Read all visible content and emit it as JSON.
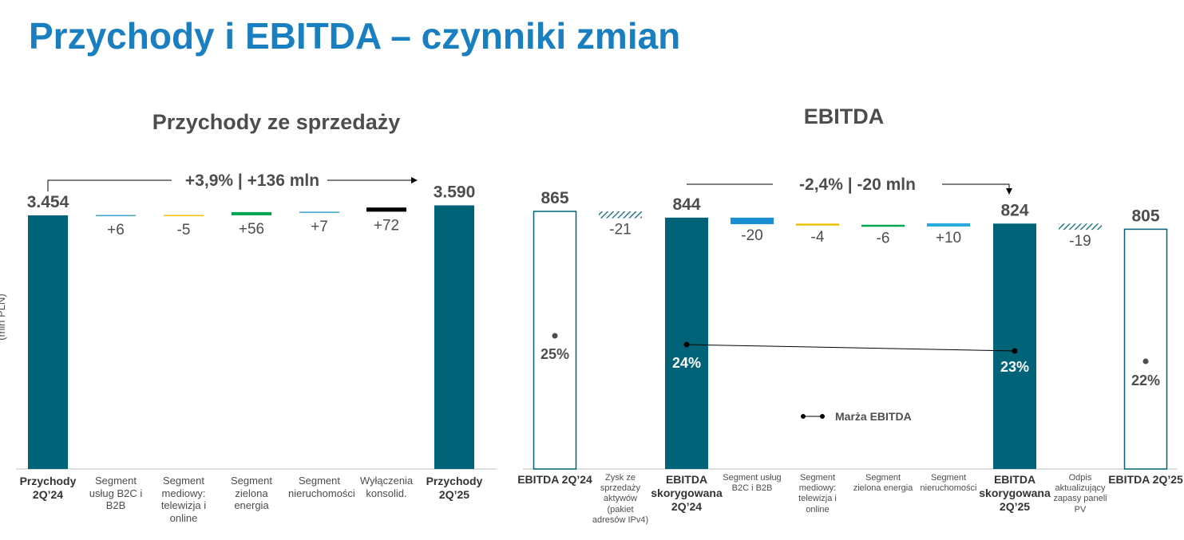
{
  "page_title": "Przychody i EBITDA – czynniki zmian",
  "colors": {
    "title": "#1a7fc1",
    "dark_bar": "#006378",
    "green": "#00a651",
    "blue": "#1a8fd1",
    "light_blue": "#29abe2",
    "teal_line": "#3aa0c8",
    "yellow": "#f2c200",
    "black": "#000000",
    "outline": "#006378",
    "hatch": "#2a7a8c"
  },
  "chart_data": [
    {
      "type": "bar",
      "subtype": "waterfall",
      "title": "Przychody ze sprzedaży",
      "ylabel": "(mln PLN)",
      "annotation": "+3,9% | +136 mln",
      "categories": [
        "Przychody 2Q’24",
        "Segment usług B2C i B2B",
        "Segment mediowy: telewizja i online",
        "Segment zielona energia",
        "Segment nieruchomości",
        "Wyłączenia konsolid.",
        "Przychody 2Q’25"
      ],
      "values": [
        3454,
        6,
        -5,
        56,
        7,
        72,
        3590
      ],
      "labels": [
        "3.454",
        "+6",
        "-5",
        "+56",
        "+7",
        "+72",
        "3.590"
      ],
      "kinds": [
        "total",
        "delta",
        "delta",
        "delta",
        "delta",
        "delta",
        "total"
      ]
    },
    {
      "type": "bar",
      "subtype": "waterfall",
      "title": "EBITDA",
      "annotation": "-2,4% | -20 mln",
      "categories": [
        "EBITDA 2Q’24",
        "Zysk ze sprzedaży aktywów (pakiet adresów IPv4)",
        "EBITDA skorygowana 2Q’24",
        "Segment usług B2C i B2B",
        "Segment mediowy: telewizja i online",
        "Segment zielona energia",
        "Segment nieruchomości",
        "EBITDA skorygowana 2Q’25",
        "Odpis aktualizujący zapasy paneli PV",
        "EBITDA 2Q’25"
      ],
      "values": [
        865,
        -21,
        844,
        -20,
        -4,
        -6,
        10,
        824,
        -19,
        805
      ],
      "labels": [
        "865",
        "-21",
        "844",
        "-20",
        "-4",
        "-6",
        "+10",
        "824",
        "-19",
        "805"
      ],
      "kinds": [
        "total-outline",
        "delta-hatch",
        "total",
        "delta",
        "delta",
        "delta",
        "delta",
        "total",
        "delta-hatch",
        "total-outline"
      ],
      "margin_series": {
        "name": "Marża EBITDA",
        "values": [
          25,
          24,
          23,
          22
        ],
        "labels": [
          "25%",
          "24%",
          "23%",
          "22%"
        ]
      }
    }
  ]
}
